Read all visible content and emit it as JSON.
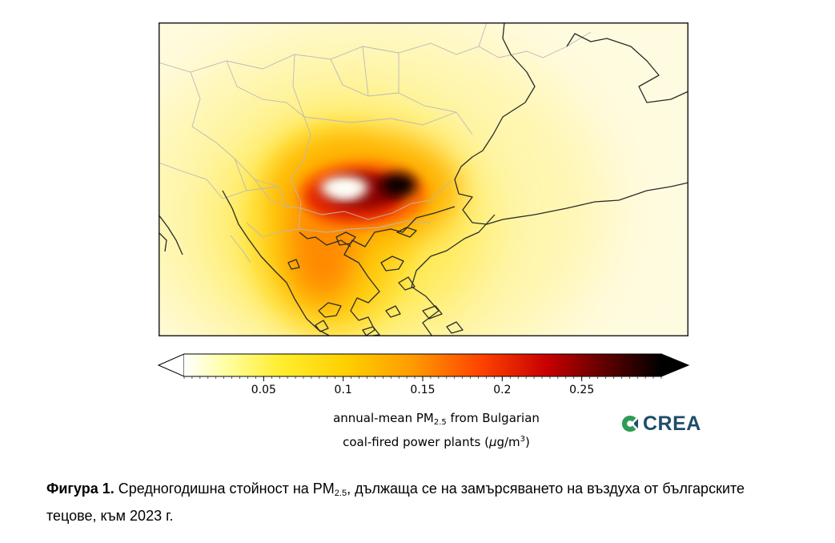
{
  "map": {
    "max_value": 0.3,
    "colors": {
      "border": "#b9b9b9",
      "coast": "#2a2a2a",
      "frame": "#222222"
    }
  },
  "colorbar": {
    "ticks": [
      {
        "value": 0.05,
        "label": "0.05"
      },
      {
        "value": 0.1,
        "label": "0.1"
      },
      {
        "value": 0.15,
        "label": "0.15"
      },
      {
        "value": 0.2,
        "label": "0.2"
      },
      {
        "value": 0.25,
        "label": "0.25"
      }
    ],
    "vmin": 0.0,
    "vmax": 0.3,
    "extend": "both",
    "label_line1_pre": "annual-mean PM",
    "label_line1_sub": "2.5",
    "label_line1_post": " from Bulgarian",
    "label_line2_pre": "coal-fired power plants (",
    "label_line2_mu": "μ",
    "label_line2_g": "g/m",
    "label_line2_sup": "3",
    "label_line2_post": ")",
    "palette": [
      "#ffffff",
      "#ffff88",
      "#ffd800",
      "#ff8800",
      "#e52000",
      "#8b0000",
      "#000000"
    ]
  },
  "logo": {
    "text": "CREA",
    "colors": [
      "#2e9c55",
      "#1f4d6b"
    ]
  },
  "caption": {
    "bold": "Фигура 1.",
    "pre": " Средногодишна стойност на PM",
    "sub": "2.5",
    "post": ", дължаща се на замърсяването на въздуха от българските тецове, към 2023 г."
  }
}
